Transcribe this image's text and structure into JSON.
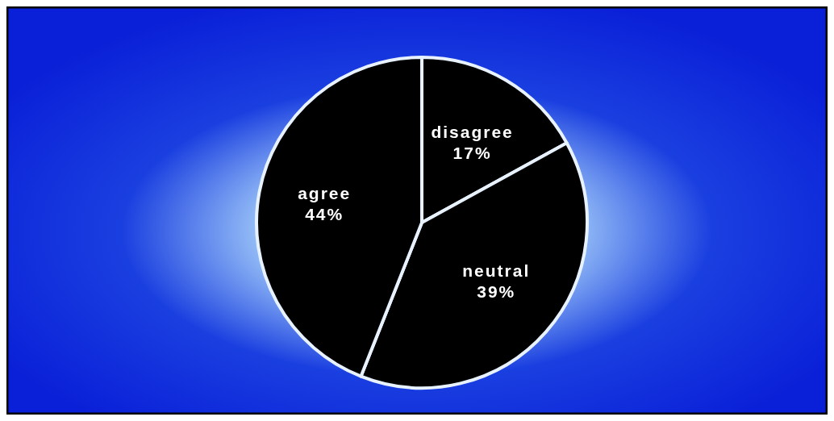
{
  "chart_data": {
    "type": "pie",
    "categories": [
      "disagree",
      "neutral",
      "agree"
    ],
    "values": [
      17,
      39,
      44
    ],
    "colors": [
      "#000000",
      "#000000",
      "#000000"
    ],
    "value_labels": [
      "17%",
      "39%",
      "44%"
    ]
  }
}
